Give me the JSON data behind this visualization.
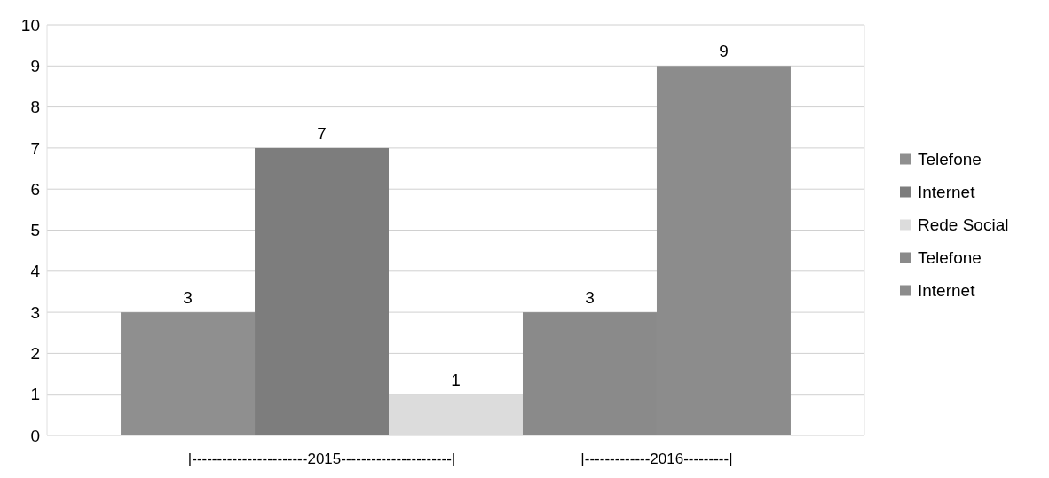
{
  "chart_data": {
    "type": "bar",
    "categories": [
      null,
      null,
      null,
      null,
      null
    ],
    "series": [
      {
        "name": "Telefone",
        "color": "#8f8f8f",
        "values": [
          3,
          null,
          null,
          null,
          null
        ]
      },
      {
        "name": "Internet",
        "color": "#7d7d7d",
        "values": [
          null,
          7,
          null,
          null,
          null
        ]
      },
      {
        "name": "Rede Social",
        "color": "#dcdcdc",
        "values": [
          null,
          null,
          1,
          null,
          null
        ]
      },
      {
        "name": "Telefone",
        "color": "#8a8a8a",
        "values": [
          null,
          null,
          null,
          3,
          null
        ]
      },
      {
        "name": "Internet",
        "color": "#8c8c8c",
        "values": [
          null,
          null,
          null,
          null,
          9
        ]
      }
    ],
    "ylim": [
      0,
      10
    ],
    "yticks": [
      0,
      1,
      2,
      3,
      4,
      5,
      6,
      7,
      8,
      9,
      10
    ],
    "grid": "y",
    "legend": "right",
    "data_labels": true,
    "annotations": [
      "|-----------------------2015----------------------|",
      "|-------------2016---------|"
    ]
  }
}
